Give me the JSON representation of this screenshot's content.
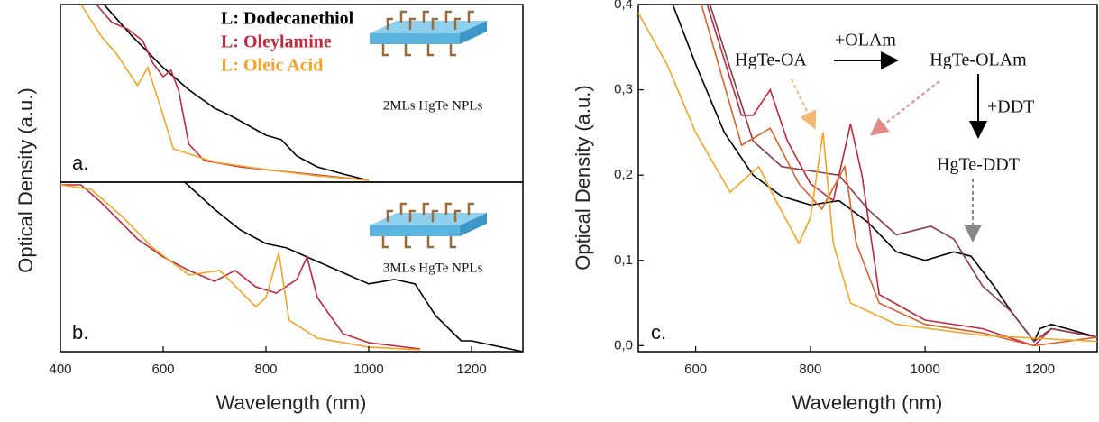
{
  "chart_data": [
    {
      "type": "line",
      "xlim": [
        400,
        1300
      ],
      "ylim": [
        0,
        1
      ],
      "y_label": "Optical Density (a.u.)",
      "annotations": [
        "a.",
        "2MLs HgTe NPLs"
      ],
      "series": [
        {
          "name": "L: Dodecanethiol",
          "color": "#000000",
          "x": [
            485,
            540,
            600,
            650,
            700,
            730,
            800,
            830,
            860,
            900,
            950,
            1000
          ],
          "values": [
            1.0,
            0.82,
            0.645,
            0.52,
            0.416,
            0.376,
            0.264,
            0.239,
            0.147,
            0.086,
            0.046,
            0.01
          ]
        },
        {
          "name": "L: Oleylamine",
          "color": "#c0283c",
          "x": [
            470,
            500,
            530,
            560,
            580,
            600,
            615,
            630,
            650,
            680,
            750,
            900,
            1000
          ],
          "values": [
            1.0,
            0.9,
            0.863,
            0.797,
            0.67,
            0.594,
            0.63,
            0.518,
            0.213,
            0.122,
            0.086,
            0.04,
            0.01
          ]
        },
        {
          "name": "L: Oleic Acid",
          "color": "#f5a323",
          "x": [
            440,
            480,
            510,
            550,
            570,
            590,
            620,
            700,
            800,
            900,
            1000
          ],
          "values": [
            1.0,
            0.82,
            0.72,
            0.543,
            0.645,
            0.467,
            0.188,
            0.112,
            0.071,
            0.036,
            0.01
          ]
        }
      ]
    },
    {
      "type": "line",
      "xlim": [
        400,
        1300
      ],
      "ylim": [
        0,
        1
      ],
      "xticks": [
        400,
        600,
        800,
        1000,
        1200
      ],
      "x_label": "Wavelength (nm)",
      "annotations": [
        "b.",
        "3MLs HgTe NPLs"
      ],
      "series": [
        {
          "color": "#000000",
          "x": [
            642,
            700,
            750,
            800,
            840,
            900,
            1000,
            1050,
            1090,
            1130,
            1180,
            1200,
            1300
          ],
          "values": [
            1.0,
            0.84,
            0.718,
            0.638,
            0.612,
            0.532,
            0.4,
            0.426,
            0.4,
            0.213,
            0.064,
            0.064,
            0
          ]
        },
        {
          "color": "#c0283c",
          "x": [
            400,
            440,
            480,
            550,
            600,
            650,
            700,
            740,
            780,
            820,
            860,
            880,
            900,
            950,
            1000,
            1100
          ],
          "values": [
            0.984,
            0.984,
            0.878,
            0.665,
            0.559,
            0.479,
            0.415,
            0.479,
            0.383,
            0.346,
            0.426,
            0.559,
            0.319,
            0.106,
            0.053,
            0.016
          ]
        },
        {
          "color": "#f5a323",
          "x": [
            400,
            460,
            520,
            580,
            650,
            710,
            780,
            800,
            825,
            845,
            900,
            1000,
            1100
          ],
          "values": [
            0.984,
            0.957,
            0.798,
            0.612,
            0.452,
            0.479,
            0.266,
            0.319,
            0.585,
            0.186,
            0.08,
            0.027,
            0.011
          ]
        }
      ]
    },
    {
      "type": "line",
      "xlim": [
        500,
        1300
      ],
      "ylim": [
        -0.007,
        0.4
      ],
      "xticks": [
        600,
        800,
        1000,
        1200
      ],
      "yticks": [
        {
          "value": 0,
          "label": "0,0"
        },
        {
          "value": 0.1,
          "label": "0,1"
        },
        {
          "value": 0.2,
          "label": "0,2"
        },
        {
          "value": 0.3,
          "label": "0,3"
        },
        {
          "value": 0.4,
          "label": "0,4"
        }
      ],
      "x_label": "Wavelength (nm)",
      "y_label": "Optical Density (a.u.)",
      "annotations": [
        "c.",
        "HgTe-OA",
        "+OLAm",
        "HgTe-OLAm",
        "+DDT",
        "HgTe-DDT"
      ],
      "series": [
        {
          "color": "#000000",
          "x": [
            560,
            600,
            650,
            700,
            750,
            800,
            850,
            900,
            950,
            1000,
            1050,
            1080,
            1120,
            1150,
            1190,
            1200,
            1220,
            1300
          ],
          "values": [
            0.4,
            0.33,
            0.25,
            0.2,
            0.175,
            0.165,
            0.17,
            0.145,
            0.11,
            0.1,
            0.11,
            0.105,
            0.07,
            0.04,
            0.005,
            0.02,
            0.025,
            0.01
          ]
        },
        {
          "color": "#c0283c",
          "x": [
            620,
            680,
            700,
            730,
            760,
            800,
            840,
            870,
            890,
            920,
            1000,
            1100,
            1190,
            1220,
            1300
          ],
          "values": [
            0.4,
            0.27,
            0.27,
            0.3,
            0.24,
            0.19,
            0.17,
            0.26,
            0.2,
            0.06,
            0.03,
            0.02,
            0,
            0.02,
            0.01
          ]
        },
        {
          "color": "#8b3a44",
          "x": [
            625,
            700,
            750,
            800,
            850,
            900,
            950,
            1010,
            1050,
            1100,
            1150,
            1190,
            1220,
            1300
          ],
          "values": [
            0.4,
            0.24,
            0.21,
            0.205,
            0.2,
            0.16,
            0.13,
            0.14,
            0.125,
            0.07,
            0.04,
            0.005,
            0.02,
            0.01
          ]
        },
        {
          "color": "#d9622b",
          "x": [
            610,
            680,
            730,
            780,
            820,
            860,
            880,
            920,
            1000,
            1100,
            1190,
            1300
          ],
          "values": [
            0.4,
            0.235,
            0.255,
            0.19,
            0.16,
            0.21,
            0.12,
            0.05,
            0.025,
            0.015,
            0,
            0.01
          ]
        },
        {
          "color": "#f5a323",
          "x": [
            500,
            550,
            600,
            660,
            710,
            740,
            780,
            800,
            822,
            840,
            870,
            950,
            1100,
            1300
          ],
          "values": [
            0.39,
            0.33,
            0.25,
            0.18,
            0.21,
            0.17,
            0.12,
            0.15,
            0.25,
            0.12,
            0.05,
            0.025,
            0.012,
            0.005
          ]
        }
      ]
    }
  ]
}
